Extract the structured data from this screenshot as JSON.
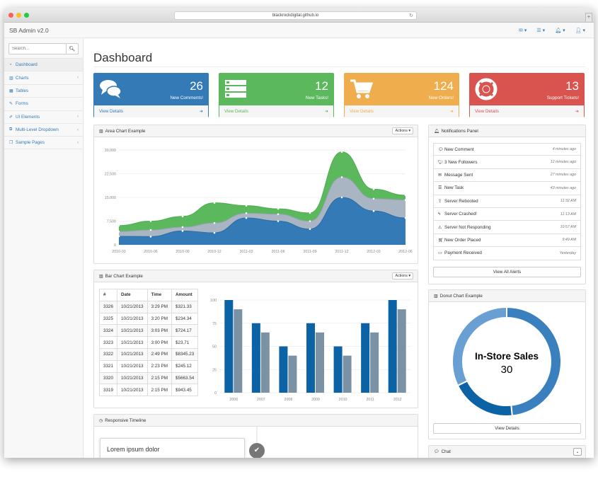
{
  "browser": {
    "url": "blackrockdigital.github.io"
  },
  "navbar": {
    "brand": "SB Admin v2.0"
  },
  "sidebar": {
    "search_placeholder": "Search...",
    "items": [
      {
        "label": "Dashboard",
        "icon": "dashboard-icon"
      },
      {
        "label": "Charts",
        "icon": "bar-chart-icon"
      },
      {
        "label": "Tables",
        "icon": "table-icon"
      },
      {
        "label": "Forms",
        "icon": "edit-icon"
      },
      {
        "label": "UI Elements",
        "icon": "wrench-icon"
      },
      {
        "label": "Multi-Level Dropdown",
        "icon": "sitemap-icon"
      },
      {
        "label": "Sample Pages",
        "icon": "files-icon"
      }
    ]
  },
  "page_title": "Dashboard",
  "stats": [
    {
      "value": "26",
      "label": "New Comments!",
      "footer": "View Details",
      "color": "#337ab7",
      "icon": "comments-icon"
    },
    {
      "value": "12",
      "label": "New Tasks!",
      "footer": "View Details",
      "color": "#5cb85c",
      "icon": "tasks-icon"
    },
    {
      "value": "124",
      "label": "New Orders!",
      "footer": "View Details",
      "color": "#f0ad4e",
      "icon": "cart-icon"
    },
    {
      "value": "13",
      "label": "Support Tickets!",
      "footer": "View Details",
      "color": "#d9534f",
      "icon": "lifebuoy-icon"
    }
  ],
  "area_panel": {
    "title": "Area Chart Example",
    "actions": "Actions"
  },
  "bar_panel": {
    "title": "Bar Chart Example",
    "actions": "Actions"
  },
  "timeline_panel": {
    "title": "Responsive Timeline",
    "entry_title": "Lorem ipsum dolor"
  },
  "notifications_panel": {
    "title": "Notifications Panel",
    "items": [
      {
        "text": "New Comment",
        "time": "4 minutes ago",
        "icon": "comment-icon"
      },
      {
        "text": "3 New Followers",
        "time": "12 minutes ago",
        "icon": "twitter-icon"
      },
      {
        "text": "Message Sent",
        "time": "27 minutes ago",
        "icon": "envelope-icon"
      },
      {
        "text": "New Task",
        "time": "43 minutes ago",
        "icon": "tasks-icon"
      },
      {
        "text": "Server Rebooted",
        "time": "11:32 AM",
        "icon": "upload-icon"
      },
      {
        "text": "Server Crashed!",
        "time": "11:13 AM",
        "icon": "bolt-icon"
      },
      {
        "text": "Server Not Responding",
        "time": "10:57 AM",
        "icon": "warning-icon"
      },
      {
        "text": "New Order Placed",
        "time": "9:49 AM",
        "icon": "cart-icon"
      },
      {
        "text": "Payment Received",
        "time": "Yesterday",
        "icon": "money-icon"
      }
    ],
    "button": "View All Alerts"
  },
  "donut_panel": {
    "title": "Donut Chart Example",
    "center_label": "In-Store Sales",
    "center_value": "30",
    "button": "View Details"
  },
  "chat_panel": {
    "title": "Chat"
  },
  "table": {
    "headers": [
      "#",
      "Date",
      "Time",
      "Amount"
    ],
    "rows": [
      [
        "3326",
        "10/21/2013",
        "3:29 PM",
        "$321.33"
      ],
      [
        "3325",
        "10/21/2013",
        "3:20 PM",
        "$234.34"
      ],
      [
        "3324",
        "10/21/2013",
        "3:03 PM",
        "$724.17"
      ],
      [
        "3323",
        "10/21/2013",
        "3:00 PM",
        "$23.71"
      ],
      [
        "3322",
        "10/21/2013",
        "2:49 PM",
        "$8345.23"
      ],
      [
        "3321",
        "10/21/2013",
        "2:23 PM",
        "$245.12"
      ],
      [
        "3320",
        "10/21/2013",
        "2:15 PM",
        "$5663.54"
      ],
      [
        "3319",
        "10/21/2013",
        "2:15 PM",
        "$943.45"
      ]
    ]
  },
  "chart_data": [
    {
      "type": "area",
      "categories": [
        "2010-03",
        "2010-06",
        "2010-09",
        "2010-12",
        "2011-03",
        "2011-06",
        "2011-09",
        "2011-12",
        "2012-03",
        "2012-06"
      ],
      "yticks": [
        "30,000",
        "22,500",
        "15,000",
        "7,500",
        "0"
      ],
      "ylim": [
        0,
        30000
      ],
      "series": [
        {
          "values": [
            2700,
            2600,
            4400,
            3800,
            8500,
            7500,
            5000,
            15000,
            10700,
            8500
          ],
          "color": "#337ab7"
        },
        {
          "values": [
            1500,
            2100,
            1200,
            3100,
            1500,
            2200,
            2500,
            6400,
            3900,
            5700
          ],
          "color": "#a9b5c2"
        },
        {
          "values": [
            1900,
            2800,
            3400,
            6400,
            2400,
            1700,
            2600,
            8000,
            3000,
            1500
          ],
          "color": "#5cb85c"
        }
      ]
    },
    {
      "type": "bar",
      "categories": [
        "2006",
        "2007",
        "2008",
        "2009",
        "2010",
        "2011",
        "2012"
      ],
      "yticks": [
        "100",
        "75",
        "50",
        "25",
        "0"
      ],
      "ylim": [
        0,
        100
      ],
      "series": [
        {
          "values": [
            100,
            75,
            50,
            75,
            50,
            75,
            100
          ],
          "color": "#0b62a4"
        },
        {
          "values": [
            90,
            65,
            40,
            65,
            40,
            65,
            90
          ],
          "color": "#7a92a3"
        }
      ]
    },
    {
      "type": "pie",
      "values": [
        30,
        12,
        20
      ],
      "colors": [
        "#3a80bf",
        "#0b62a4",
        "#6a9fd4"
      ]
    }
  ]
}
